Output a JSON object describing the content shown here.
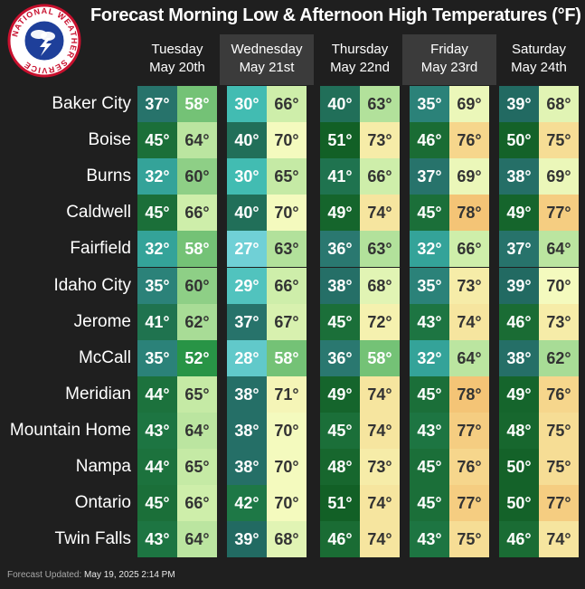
{
  "title": "Forecast Morning Low & Afternoon High Temperatures (°F)",
  "logo_text": "NATIONAL WEATHER SERVICE",
  "days": [
    {
      "weekday": "Tuesday",
      "date": "May 20th"
    },
    {
      "weekday": "Wednesday",
      "date": "May 21st"
    },
    {
      "weekday": "Thursday",
      "date": "May 22nd"
    },
    {
      "weekday": "Friday",
      "date": "May 23rd"
    },
    {
      "weekday": "Saturday",
      "date": "May 24th"
    }
  ],
  "cities": [
    {
      "name": "Baker City",
      "temps": [
        [
          "37°",
          "58°"
        ],
        [
          "30°",
          "66°"
        ],
        [
          "40°",
          "63°"
        ],
        [
          "35°",
          "69°"
        ],
        [
          "39°",
          "68°"
        ]
      ]
    },
    {
      "name": "Boise",
      "temps": [
        [
          "45°",
          "64°"
        ],
        [
          "40°",
          "70°"
        ],
        [
          "51°",
          "73°"
        ],
        [
          "46°",
          "76°"
        ],
        [
          "50°",
          "75°"
        ]
      ]
    },
    {
      "name": "Burns",
      "temps": [
        [
          "32°",
          "60°"
        ],
        [
          "30°",
          "65°"
        ],
        [
          "41°",
          "66°"
        ],
        [
          "37°",
          "69°"
        ],
        [
          "38°",
          "69°"
        ]
      ]
    },
    {
      "name": "Caldwell",
      "temps": [
        [
          "45°",
          "66°"
        ],
        [
          "40°",
          "70°"
        ],
        [
          "49°",
          "74°"
        ],
        [
          "45°",
          "78°"
        ],
        [
          "49°",
          "77°"
        ]
      ]
    },
    {
      "name": "Fairfield",
      "temps": [
        [
          "32°",
          "58°"
        ],
        [
          "27°",
          "63°"
        ],
        [
          "36°",
          "63°"
        ],
        [
          "32°",
          "66°"
        ],
        [
          "37°",
          "64°"
        ]
      ]
    },
    {
      "name": "Idaho City",
      "temps": [
        [
          "35°",
          "60°"
        ],
        [
          "29°",
          "66°"
        ],
        [
          "38°",
          "68°"
        ],
        [
          "35°",
          "73°"
        ],
        [
          "39°",
          "70°"
        ]
      ]
    },
    {
      "name": "Jerome",
      "temps": [
        [
          "41°",
          "62°"
        ],
        [
          "37°",
          "67°"
        ],
        [
          "45°",
          "72°"
        ],
        [
          "43°",
          "74°"
        ],
        [
          "46°",
          "73°"
        ]
      ]
    },
    {
      "name": "McCall",
      "temps": [
        [
          "35°",
          "52°"
        ],
        [
          "28°",
          "58°"
        ],
        [
          "36°",
          "58°"
        ],
        [
          "32°",
          "64°"
        ],
        [
          "38°",
          "62°"
        ]
      ]
    },
    {
      "name": "Meridian",
      "temps": [
        [
          "44°",
          "65°"
        ],
        [
          "38°",
          "71°"
        ],
        [
          "49°",
          "74°"
        ],
        [
          "45°",
          "78°"
        ],
        [
          "49°",
          "76°"
        ]
      ]
    },
    {
      "name": "Mountain Home",
      "temps": [
        [
          "43°",
          "64°"
        ],
        [
          "38°",
          "70°"
        ],
        [
          "45°",
          "74°"
        ],
        [
          "43°",
          "77°"
        ],
        [
          "48°",
          "75°"
        ]
      ]
    },
    {
      "name": "Nampa",
      "temps": [
        [
          "44°",
          "65°"
        ],
        [
          "38°",
          "70°"
        ],
        [
          "48°",
          "73°"
        ],
        [
          "45°",
          "76°"
        ],
        [
          "50°",
          "75°"
        ]
      ]
    },
    {
      "name": "Ontario",
      "temps": [
        [
          "45°",
          "66°"
        ],
        [
          "42°",
          "70°"
        ],
        [
          "51°",
          "74°"
        ],
        [
          "45°",
          "77°"
        ],
        [
          "50°",
          "77°"
        ]
      ]
    },
    {
      "name": "Twin Falls",
      "temps": [
        [
          "43°",
          "64°"
        ],
        [
          "39°",
          "68°"
        ],
        [
          "46°",
          "74°"
        ],
        [
          "43°",
          "75°"
        ],
        [
          "46°",
          "74°"
        ]
      ]
    }
  ],
  "footer": {
    "label": "Forecast Updated:",
    "value": "May 19, 2025 2:14 PM"
  }
}
